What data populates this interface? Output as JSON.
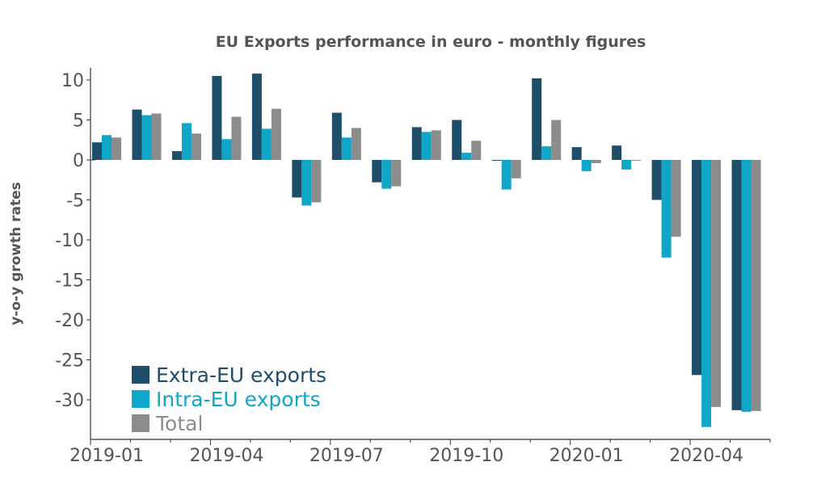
{
  "chart_data": {
    "type": "bar",
    "title": "EU Exports performance in euro - monthly figures",
    "xlabel": "",
    "ylabel": "y-o-y growth rates",
    "ylim": [
      -35,
      11.5
    ],
    "yticks": [
      10,
      5,
      0,
      -5,
      -10,
      -15,
      -20,
      -25,
      -30
    ],
    "categories": [
      "2019-01",
      "2019-02",
      "2019-03",
      "2019-04",
      "2019-05",
      "2019-06",
      "2019-07",
      "2019-08",
      "2019-09",
      "2019-10",
      "2019-11",
      "2019-12",
      "2020-01",
      "2020-02",
      "2020-03",
      "2020-04",
      "2020-05"
    ],
    "xtick_labels": [
      "2019-01",
      "",
      "",
      "2019-04",
      "",
      "",
      "2019-07",
      "",
      "",
      "2019-10",
      "",
      "",
      "2020-01",
      "",
      "",
      "2020-04",
      ""
    ],
    "series": [
      {
        "name": "Extra-EU exports",
        "color": "#1f4e6b",
        "values": [
          2.2,
          6.3,
          1.1,
          10.5,
          10.8,
          -4.7,
          5.9,
          -2.8,
          4.1,
          5.0,
          -0.1,
          10.2,
          1.6,
          1.8,
          -5.0,
          -26.9,
          -31.3
        ]
      },
      {
        "name": "Intra-EU exports",
        "color": "#0fa6c8",
        "values": [
          3.1,
          5.6,
          4.6,
          2.6,
          3.9,
          -5.7,
          2.8,
          -3.6,
          3.5,
          0.9,
          -3.7,
          1.7,
          -1.4,
          -1.2,
          -12.2,
          -33.4,
          -31.5
        ]
      },
      {
        "name": "Total",
        "color": "#8c8c8c",
        "values": [
          2.8,
          5.8,
          3.3,
          5.4,
          6.4,
          -5.3,
          4.0,
          -3.3,
          3.7,
          2.4,
          -2.3,
          5.0,
          -0.4,
          -0.1,
          -9.6,
          -30.9,
          -31.4
        ]
      }
    ],
    "legend_position": "bottom-left",
    "grid": false
  }
}
